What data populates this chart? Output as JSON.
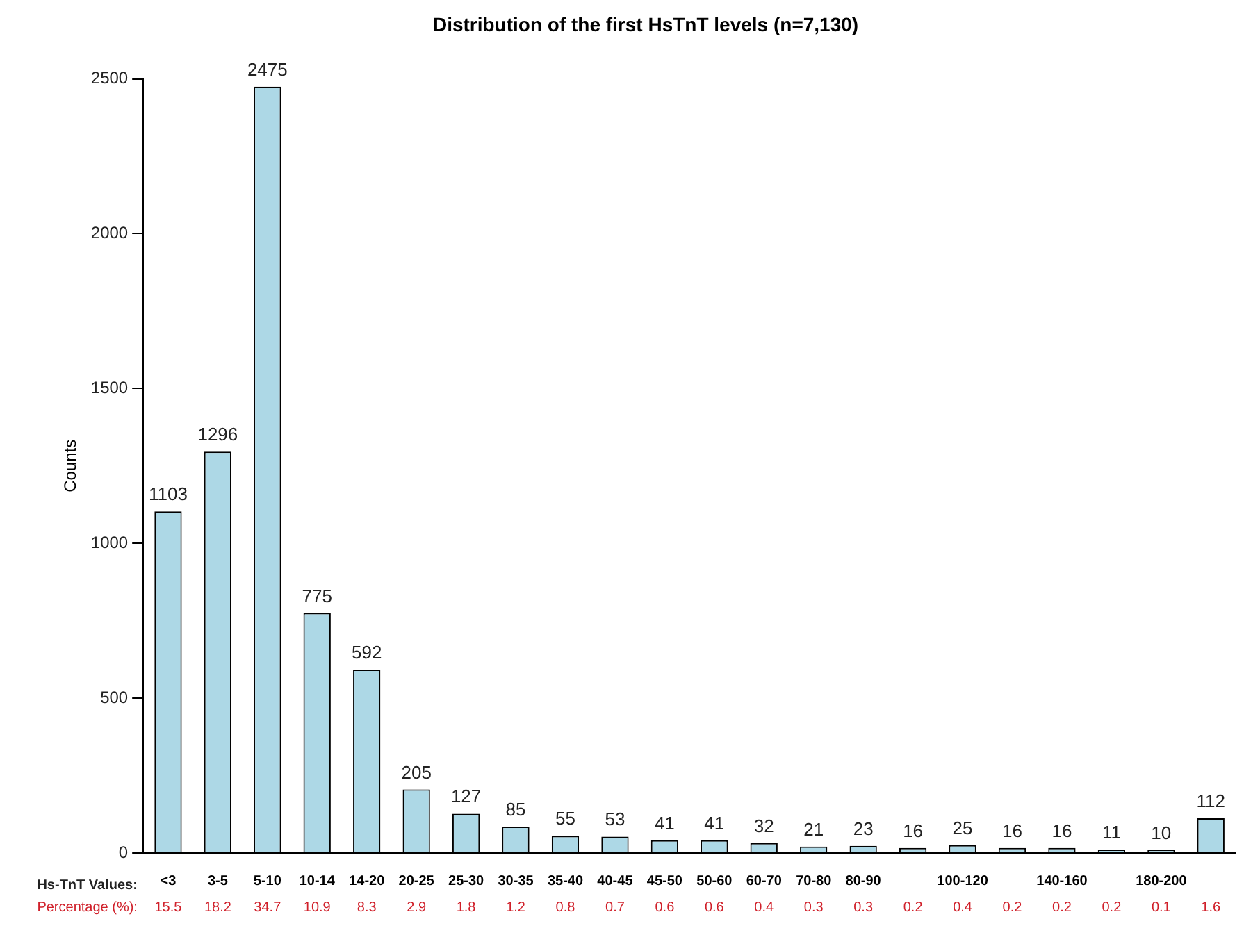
{
  "chart_data": {
    "type": "bar",
    "title": "Distribution of the first HsTnT levels (n=7,130)",
    "ylabel": "Counts",
    "categories": [
      "<3",
      "3-5",
      "5-10",
      "10-14",
      "14-20",
      "20-25",
      "25-30",
      "30-35",
      "35-40",
      "40-45",
      "45-50",
      "50-60",
      "60-70",
      "70-80",
      "80-90",
      null,
      "100-120",
      null,
      "140-160",
      null,
      "180-200",
      null
    ],
    "values": [
      1103,
      1296,
      2475,
      775,
      592,
      205,
      127,
      85,
      55,
      53,
      41,
      41,
      32,
      21,
      23,
      16,
      25,
      16,
      16,
      11,
      10,
      112
    ],
    "color": "#add8e6",
    "ylim": [
      0,
      2500
    ],
    "yticks": [
      0,
      500,
      1000,
      1500,
      2000,
      2500
    ],
    "grid": false,
    "legend": false,
    "data_labels": true,
    "annotations": [
      "Hs-TnT Values:",
      "Percentage (%):",
      "15.5",
      "18.2",
      "34.7",
      "10.9",
      "8.3",
      "2.9",
      "1.8",
      "1.2",
      "0.8",
      "0.7",
      "0.6",
      "0.6",
      "0.4",
      "0.3",
      "0.3",
      "0.2",
      "0.4",
      "0.2",
      "0.2",
      "0.2",
      "0.1",
      "1.6"
    ]
  }
}
